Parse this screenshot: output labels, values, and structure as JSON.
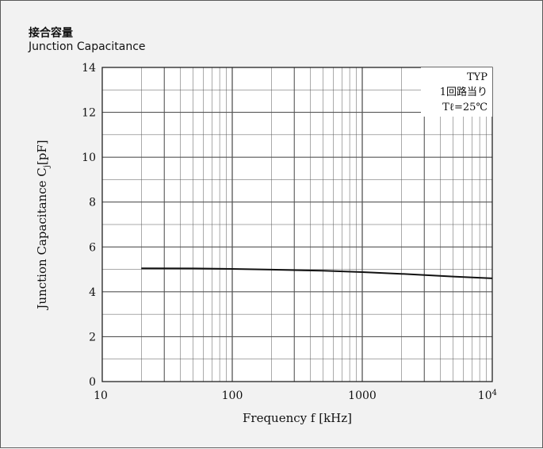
{
  "header": {
    "title_ja": "接合容量",
    "title_en": "Junction Capacitance"
  },
  "chart_data": {
    "type": "line",
    "title": "接合容量 Junction Capacitance",
    "xlabel": "Frequency f [kHz]",
    "ylabel_main": "Junction Capacitance C",
    "ylabel_sub": "j",
    "ylabel_unit": "[pF]",
    "x_scale": "log",
    "xlim": [
      10,
      10000
    ],
    "ylim": [
      0,
      14
    ],
    "grid": true,
    "x_ticks": [
      {
        "value": 10,
        "label": "10"
      },
      {
        "value": 100,
        "label": "100"
      },
      {
        "value": 1000,
        "label": "1000"
      },
      {
        "value": 10000,
        "label": "10",
        "sup": "4"
      }
    ],
    "y_ticks": [
      {
        "value": 0,
        "label": "0"
      },
      {
        "value": 2,
        "label": "2"
      },
      {
        "value": 4,
        "label": "4"
      },
      {
        "value": 6,
        "label": "6"
      },
      {
        "value": 8,
        "label": "8"
      },
      {
        "value": 10,
        "label": "10"
      },
      {
        "value": 12,
        "label": "12"
      },
      {
        "value": 14,
        "label": "14"
      }
    ],
    "annotation": [
      "TYP",
      "1回路当り",
      "Tℓ=25℃"
    ],
    "series": [
      {
        "x": [
          20,
          50,
          100,
          200,
          500,
          1000,
          2000,
          5000,
          10000
        ],
        "y": [
          5.05,
          5.04,
          5.02,
          4.99,
          4.94,
          4.88,
          4.8,
          4.68,
          4.6
        ]
      }
    ],
    "colors": {
      "line": "#111111",
      "grid": "#555555",
      "frame_bg": "#f2f2f2"
    }
  }
}
